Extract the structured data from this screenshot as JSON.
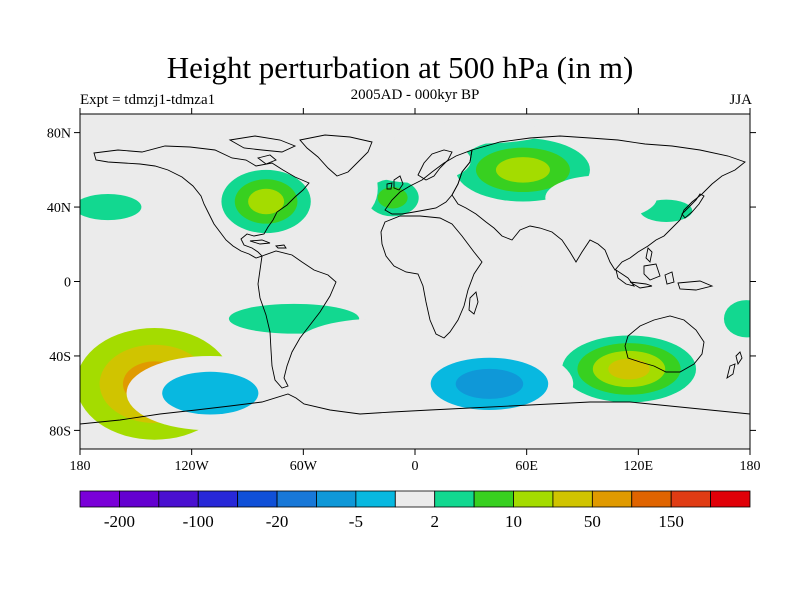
{
  "title": "Height perturbation at 500 hPa (in m)",
  "left_label": "Expt = tdmzj1-tdmza1",
  "center_label": "2005AD - 000kyr BP",
  "right_label": "JJA",
  "map": {
    "projection": "cylindrical-equidistant",
    "lon_range": [
      -180,
      180
    ],
    "lat_range": [
      -90,
      90
    ],
    "land_color": "#ebebeb",
    "coastline_color": "#000000"
  },
  "lat_ticks": [
    {
      "value": 80,
      "label": "80N"
    },
    {
      "value": 40,
      "label": "40N"
    },
    {
      "value": 0,
      "label": "0"
    },
    {
      "value": -40,
      "label": "40S"
    },
    {
      "value": -80,
      "label": "80S"
    }
  ],
  "lon_ticks": [
    {
      "value": -180,
      "label": "180"
    },
    {
      "value": -120,
      "label": "120W"
    },
    {
      "value": -60,
      "label": "60W"
    },
    {
      "value": 0,
      "label": "0"
    },
    {
      "value": 60,
      "label": "60E"
    },
    {
      "value": 120,
      "label": "120E"
    },
    {
      "value": 180,
      "label": "180"
    }
  ],
  "colorbar": {
    "colors": [
      "#7a00d8",
      "#6400d0",
      "#4a10d0",
      "#2828d8",
      "#1050d8",
      "#1878d8",
      "#0f98d8",
      "#08b8e0",
      "#ebebeb",
      "#12d890",
      "#38d020",
      "#a4dc00",
      "#d0c400",
      "#e09a00",
      "#e06400",
      "#e03c14",
      "#e00008"
    ],
    "labels": [
      {
        "edge": 1,
        "text": "-200"
      },
      {
        "edge": 3,
        "text": "-100"
      },
      {
        "edge": 5,
        "text": "-20"
      },
      {
        "edge": 7,
        "text": "-5"
      },
      {
        "edge": 9,
        "text": "2"
      },
      {
        "edge": 11,
        "text": "10"
      },
      {
        "edge": 13,
        "text": "50"
      },
      {
        "edge": 15,
        "text": "150"
      }
    ]
  },
  "anomalies": [
    {
      "lon": -140,
      "lat": -55,
      "rx": 42,
      "ry": 30,
      "levels": [
        11,
        12,
        13
      ]
    },
    {
      "lon": -80,
      "lat": 43,
      "rx": 24,
      "ry": 17,
      "levels": [
        9,
        10,
        11
      ]
    },
    {
      "lon": -12,
      "lat": 45,
      "rx": 14,
      "ry": 10,
      "levels": [
        9,
        10
      ]
    },
    {
      "lon": 58,
      "lat": 60,
      "rx": 36,
      "ry": 17,
      "levels": [
        9,
        10,
        11
      ]
    },
    {
      "lon": 115,
      "lat": -47,
      "rx": 36,
      "ry": 18,
      "levels": [
        9,
        10,
        11,
        12
      ]
    },
    {
      "lon": -65,
      "lat": -20,
      "rx": 35,
      "ry": 8,
      "levels": [
        9
      ]
    },
    {
      "lon": -165,
      "lat": 40,
      "rx": 18,
      "ry": 7,
      "levels": [
        9
      ]
    },
    {
      "lon": 135,
      "lat": 38,
      "rx": 14,
      "ry": 6,
      "levels": [
        9
      ]
    },
    {
      "lon": 178,
      "lat": -20,
      "rx": 12,
      "ry": 10,
      "levels": [
        9
      ]
    },
    {
      "lon": -30,
      "lat": 50,
      "rx": 10,
      "ry": 14,
      "levels": [
        8
      ]
    },
    {
      "lon": -20,
      "lat": -35,
      "rx": 45,
      "ry": 15,
      "levels": [
        8
      ]
    },
    {
      "lon": -110,
      "lat": -60,
      "rx": 45,
      "ry": 20,
      "levels": [
        8,
        7
      ]
    },
    {
      "lon": 40,
      "lat": -55,
      "rx": 45,
      "ry": 20,
      "levels": [
        8,
        7,
        6
      ]
    },
    {
      "lon": -50,
      "lat": 75,
      "rx": 40,
      "ry": 10,
      "levels": [
        8
      ]
    },
    {
      "lon": 0,
      "lat": 65,
      "rx": 30,
      "ry": 12,
      "levels": [
        8
      ]
    },
    {
      "lon": 30,
      "lat": -20,
      "rx": 30,
      "ry": 8,
      "levels": [
        8
      ]
    },
    {
      "lon": 70,
      "lat": -8,
      "rx": 30,
      "ry": 6,
      "levels": [
        8
      ]
    },
    {
      "lon": 100,
      "lat": 45,
      "rx": 30,
      "ry": 12,
      "levels": [
        8
      ]
    },
    {
      "lon": 30,
      "lat": 80,
      "rx": 40,
      "ry": 6,
      "levels": [
        8
      ]
    },
    {
      "lon": -90,
      "lat": 70,
      "rx": 30,
      "ry": 8,
      "levels": [
        8
      ]
    }
  ]
}
